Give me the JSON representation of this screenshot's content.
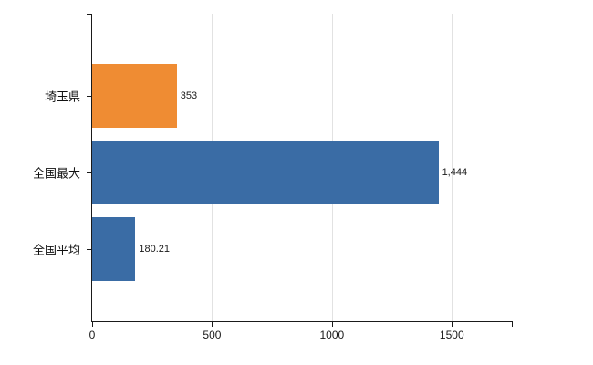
{
  "chart_data": {
    "type": "bar",
    "orientation": "horizontal",
    "title": "",
    "xlabel": "",
    "ylabel": "",
    "categories": [
      "埼玉県",
      "全国最大",
      "全国平均"
    ],
    "values": [
      353,
      1444,
      180.21
    ],
    "value_labels": [
      "353",
      "1,444",
      "180.21"
    ],
    "bar_colors": [
      "#ef8c33",
      "#3a6ca5",
      "#3a6ca5"
    ],
    "xlim": [
      0,
      1750
    ],
    "x_ticks": [
      0,
      500,
      1000,
      1500
    ],
    "x_tick_labels": [
      "0",
      "500",
      "1000",
      "1500"
    ],
    "grid": true,
    "legend": "none",
    "colors": {
      "axis": "#1a1a1a",
      "gridline": "#e2e2e2",
      "background": "#ffffff",
      "orange": "#ef8c33",
      "blue": "#3a6ca5"
    }
  }
}
